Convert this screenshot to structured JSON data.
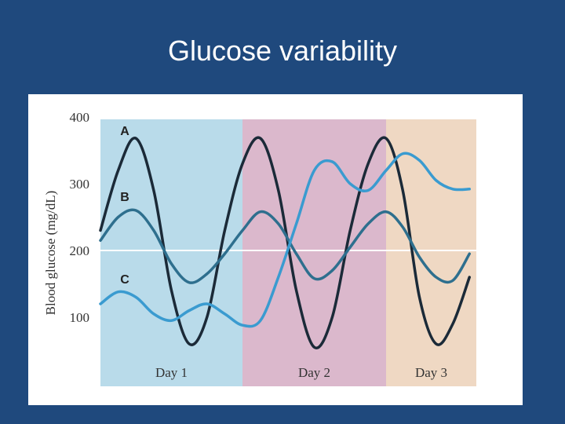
{
  "slide": {
    "title": "Glucose variability"
  },
  "colors": {
    "background": "#1f497d",
    "day1": "#b9dbea",
    "day2": "#dbb8cc",
    "day3": "#efd8c3",
    "seriesA": "#1b2a38",
    "seriesB": "#2e6f8e",
    "seriesC": "#3a9bd0",
    "refline": "#ffffff"
  },
  "chart_data": {
    "type": "line",
    "title": "Glucose variability",
    "xlabel": "",
    "ylabel": "Blood glucose (mg/dL)",
    "ylim": [
      20,
      400
    ],
    "yticks": [
      100,
      200,
      300,
      400
    ],
    "reference_line": 200,
    "regions": [
      {
        "label": "Day 1",
        "x0": 0,
        "x1": 1
      },
      {
        "label": "Day 2",
        "x0": 1,
        "x1": 2
      },
      {
        "label": "Day 3",
        "x0": 2,
        "x1": 3
      }
    ],
    "x": [
      0,
      0.125,
      0.25,
      0.375,
      0.5,
      0.625,
      0.75,
      0.875,
      1.0,
      1.125,
      1.25,
      1.375,
      1.5,
      1.625,
      1.75,
      1.875,
      2.0,
      2.125,
      2.25,
      2.375,
      2.5,
      2.625
    ],
    "series": [
      {
        "name": "A",
        "values": [
          230,
          320,
          368,
          290,
          140,
          60,
          100,
          230,
          330,
          368,
          290,
          140,
          55,
          100,
          230,
          330,
          368,
          290,
          130,
          60,
          90,
          160
        ]
      },
      {
        "name": "B",
        "values": [
          215,
          250,
          260,
          230,
          180,
          152,
          165,
          195,
          230,
          258,
          240,
          195,
          158,
          170,
          205,
          240,
          258,
          235,
          190,
          160,
          155,
          195
        ]
      },
      {
        "name": "C",
        "values": [
          120,
          138,
          130,
          105,
          95,
          110,
          120,
          105,
          88,
          95,
          160,
          240,
          320,
          333,
          300,
          290,
          320,
          345,
          335,
          305,
          292,
          292
        ]
      }
    ],
    "series_labels": [
      "A",
      "B",
      "C"
    ],
    "grid": false,
    "legend": "inline labels"
  }
}
